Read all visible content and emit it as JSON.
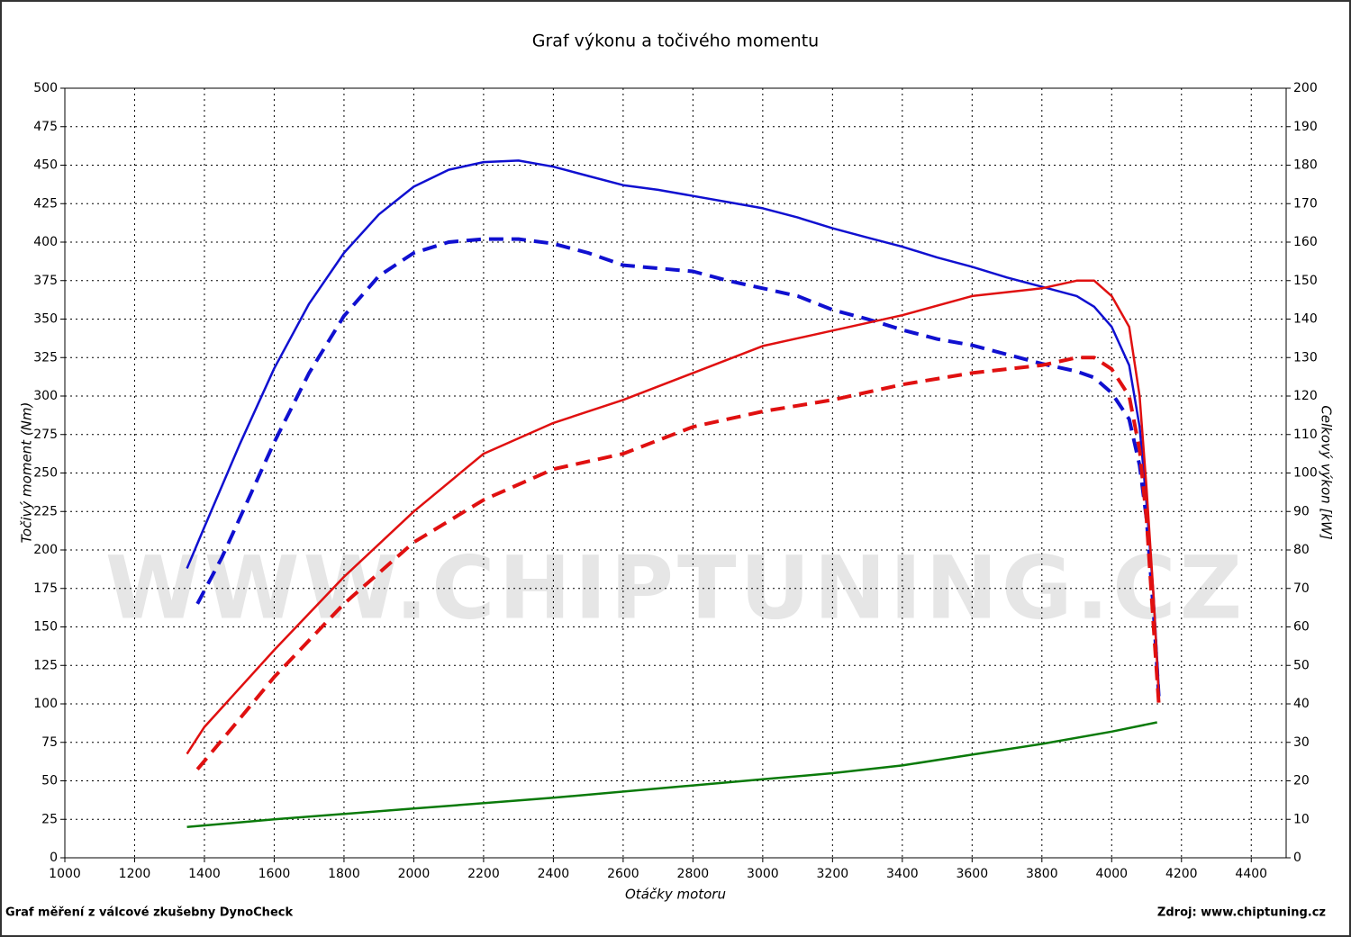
{
  "chart_data": {
    "type": "line",
    "title": "Graf výkonu a točivého momentu",
    "xlabel": "Otáčky motoru",
    "ylabel": "Točivý moment (Nm)",
    "y2label": "Celkový výkon [kW]",
    "footer_left": "Graf měření z válcové zkušebny DynoCheck",
    "footer_right": "Zdroj: www.chiptuning.cz",
    "watermark": "WWW.CHIPTUNING.CZ",
    "xlim": [
      1000,
      4500
    ],
    "ylim": [
      0,
      500
    ],
    "y2lim": [
      0,
      200
    ],
    "xticks": [
      1000,
      1200,
      1400,
      1600,
      1800,
      2000,
      2200,
      2400,
      2600,
      2800,
      3000,
      3200,
      3400,
      3600,
      3800,
      4000,
      4200,
      4400
    ],
    "yticks": [
      0,
      25,
      50,
      75,
      100,
      125,
      150,
      175,
      200,
      225,
      250,
      275,
      300,
      325,
      350,
      375,
      400,
      425,
      450,
      475,
      500
    ],
    "y2ticks": [
      0,
      10,
      20,
      30,
      40,
      50,
      60,
      70,
      80,
      90,
      100,
      110,
      120,
      130,
      140,
      150,
      160,
      170,
      180,
      190,
      200
    ],
    "grid": true,
    "series": [
      {
        "color": "#1010d0",
        "style": "solid",
        "x": [
          1350,
          1400,
          1500,
          1600,
          1700,
          1800,
          1900,
          2000,
          2100,
          2200,
          2300,
          2400,
          2500,
          2600,
          2700,
          2800,
          2900,
          3000,
          3100,
          3200,
          3300,
          3400,
          3500,
          3600,
          3700,
          3800,
          3900,
          3950,
          4000,
          4050,
          4080,
          4100,
          4120,
          4135
        ],
        "values": [
          188,
          215,
          268,
          318,
          360,
          393,
          418,
          436,
          447,
          452,
          453,
          449,
          443,
          437,
          434,
          430,
          426,
          422,
          416,
          409,
          403,
          397,
          390,
          384,
          377,
          371,
          365,
          358,
          345,
          320,
          280,
          230,
          170,
          110
        ]
      },
      {
        "color": "#1010d0",
        "style": "dashed",
        "x": [
          1380,
          1450,
          1500,
          1600,
          1700,
          1800,
          1900,
          2000,
          2100,
          2200,
          2300,
          2400,
          2500,
          2600,
          2700,
          2800,
          2900,
          3000,
          3100,
          3200,
          3300,
          3400,
          3500,
          3600,
          3700,
          3800,
          3900,
          3950,
          4000,
          4050,
          4080,
          4100,
          4120,
          4135
        ],
        "values": [
          165,
          195,
          220,
          270,
          315,
          352,
          378,
          393,
          400,
          402,
          402,
          399,
          393,
          385,
          383,
          381,
          375,
          370,
          365,
          356,
          350,
          343,
          337,
          333,
          327,
          321,
          316,
          312,
          302,
          285,
          255,
          220,
          160,
          105
        ]
      },
      {
        "color": "#e01010",
        "style": "solid",
        "axis": "y2",
        "x": [
          1350,
          1400,
          1600,
          1800,
          2000,
          2200,
          2400,
          2600,
          2800,
          3000,
          3200,
          3400,
          3600,
          3800,
          3900,
          3950,
          4000,
          4050,
          4080,
          4100,
          4120,
          4135
        ],
        "values": [
          27,
          34,
          54,
          73,
          90,
          105,
          113,
          119,
          126,
          133,
          137,
          141,
          146,
          148,
          150,
          150,
          146,
          138,
          120,
          96,
          68,
          42
        ]
      },
      {
        "color": "#e01010",
        "style": "dashed",
        "axis": "y2",
        "x": [
          1380,
          1500,
          1600,
          1800,
          2000,
          2200,
          2400,
          2600,
          2800,
          3000,
          3200,
          3400,
          3600,
          3800,
          3900,
          3950,
          4000,
          4050,
          4080,
          4100,
          4120,
          4135
        ],
        "values": [
          23,
          36,
          47,
          66,
          82,
          93,
          101,
          105,
          112,
          116,
          119,
          123,
          126,
          128,
          130,
          130,
          127,
          120,
          106,
          88,
          60,
          40
        ]
      },
      {
        "color": "#0a7a0a",
        "style": "solid",
        "axis": "y2",
        "x": [
          1350,
          1600,
          2000,
          2400,
          2800,
          3000,
          3200,
          3400,
          3600,
          3800,
          4000,
          4130
        ],
        "values": [
          8,
          10,
          12.8,
          15.6,
          18.8,
          20.4,
          22,
          24,
          26.8,
          29.6,
          32.8,
          35.2
        ]
      }
    ]
  }
}
